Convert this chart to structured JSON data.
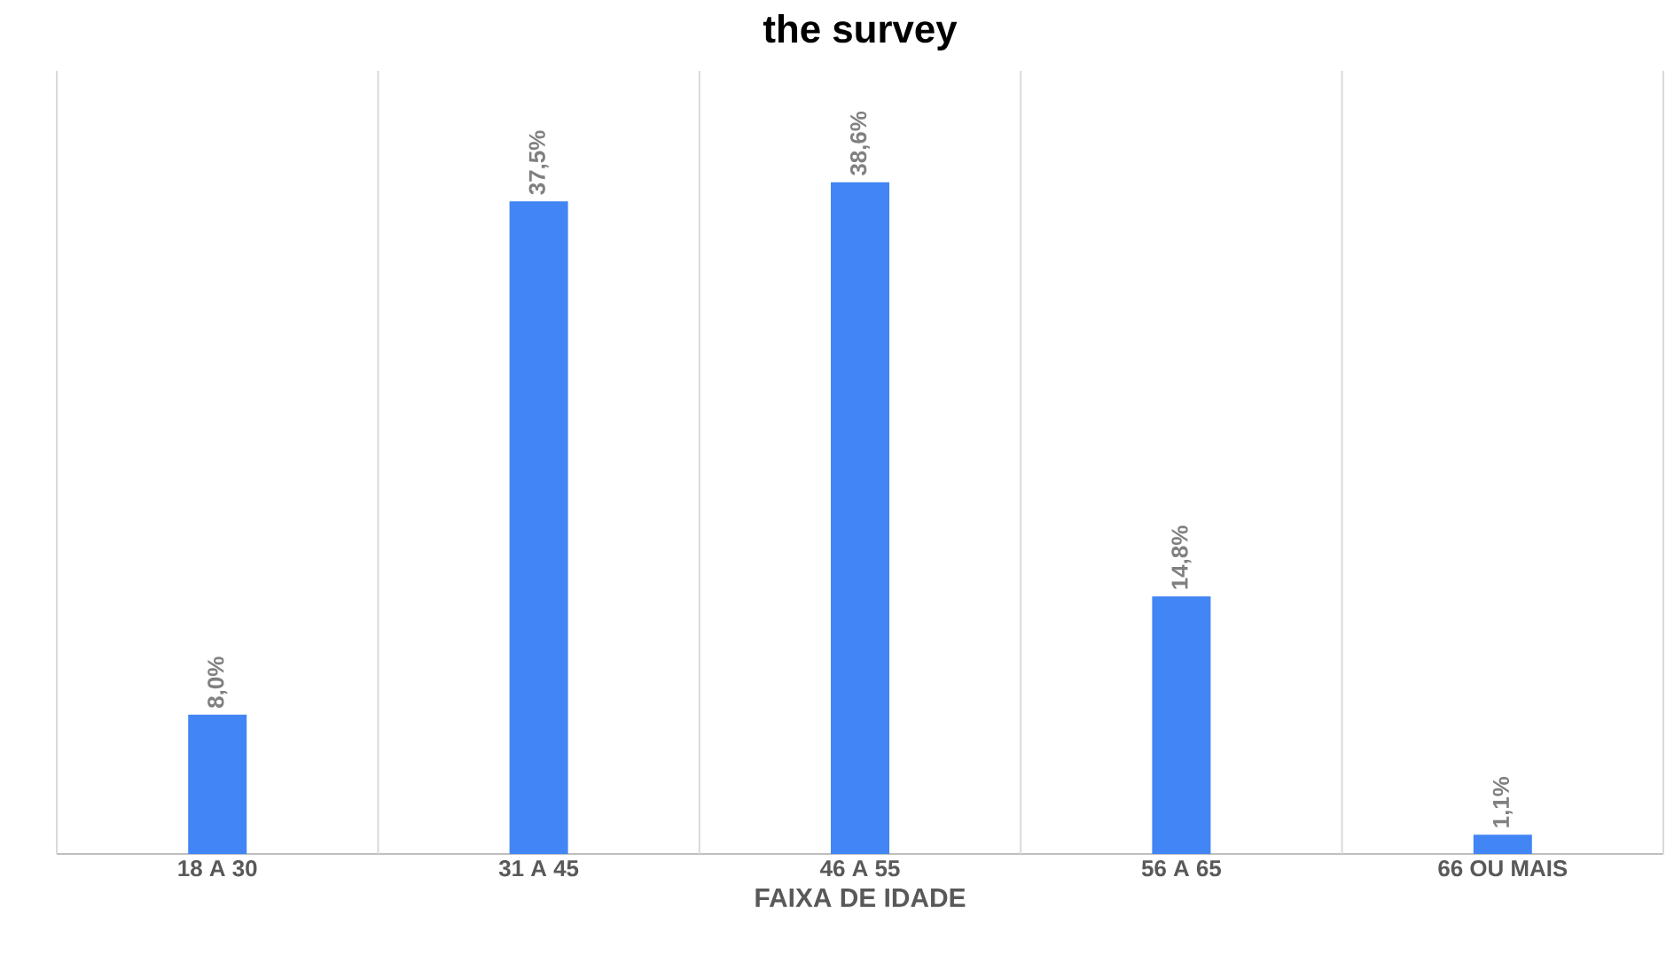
{
  "chart_data": {
    "type": "bar",
    "title": "the survey",
    "xlabel": "FAIXA DE IDADE",
    "categories": [
      "18 A 30",
      "31 A 45",
      "46 A 55",
      "56 A 65",
      "66 OU MAIS"
    ],
    "values": [
      8.0,
      37.5,
      38.6,
      14.8,
      1.1
    ],
    "value_labels": [
      "8,0%",
      "37,5%",
      "38,6%",
      "14,8%",
      "1,1%"
    ],
    "color": "#4285f4",
    "ylim": [
      0,
      45
    ],
    "grid": "x"
  }
}
